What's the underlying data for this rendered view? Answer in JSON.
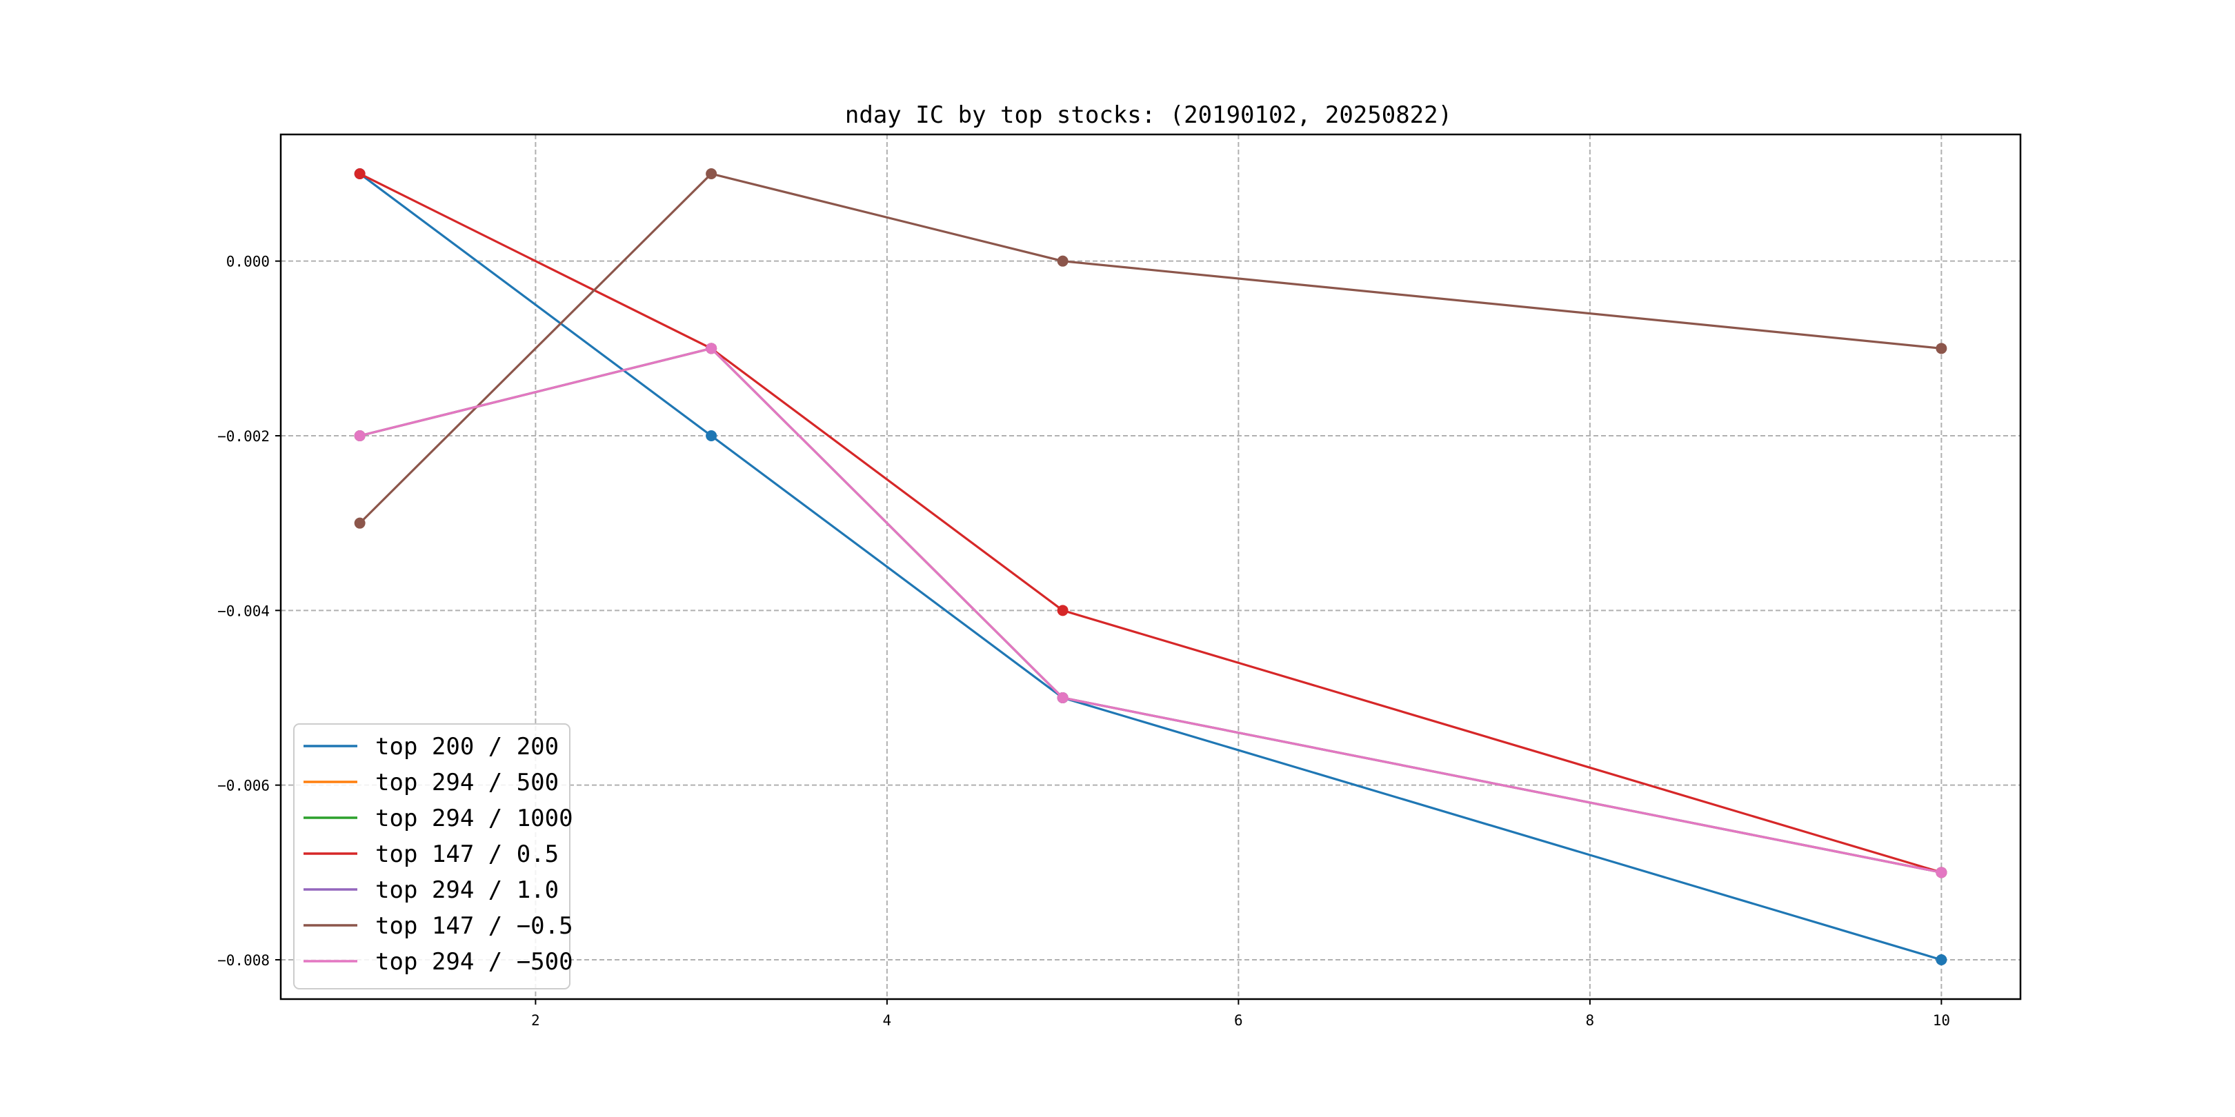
{
  "chart_data": {
    "type": "line",
    "title": "nday IC by top stocks: (20190102, 20250822)",
    "xlabel": "",
    "ylabel": "",
    "x": [
      1,
      3,
      5,
      10
    ],
    "xlim": [
      0.55,
      10.45
    ],
    "ylim": [
      -0.00845,
      0.00145
    ],
    "xticks": [
      2,
      4,
      6,
      8,
      10
    ],
    "xtick_labels": [
      "2",
      "4",
      "6",
      "8",
      "10"
    ],
    "yticks": [
      0.0,
      -0.002,
      -0.004,
      -0.006,
      -0.008
    ],
    "ytick_labels": [
      "0.000",
      "−0.002",
      "−0.004",
      "−0.006",
      "−0.008"
    ],
    "grid": true,
    "legend_position": "lower-left",
    "series": [
      {
        "name": "top 200 / 200",
        "color": "#1f77b4",
        "values": [
          0.001,
          -0.002,
          -0.005,
          -0.008
        ]
      },
      {
        "name": "top 294 / 500",
        "color": "#ff7f0e",
        "values": [
          -0.002,
          -0.001,
          -0.005,
          -0.007
        ]
      },
      {
        "name": "top 294 / 1000",
        "color": "#2ca02c",
        "values": [
          -0.002,
          -0.001,
          -0.005,
          -0.007
        ]
      },
      {
        "name": "top 147 / 0.5",
        "color": "#d62728",
        "values": [
          0.001,
          -0.001,
          -0.004,
          -0.007
        ]
      },
      {
        "name": "top 294 / 1.0",
        "color": "#9467bd",
        "values": [
          -0.002,
          -0.001,
          -0.005,
          -0.007
        ]
      },
      {
        "name": "top 147 / −0.5",
        "color": "#8c564b",
        "values": [
          -0.003,
          0.001,
          0.0,
          -0.001
        ]
      },
      {
        "name": "top 294 / −500",
        "color": "#e377c2",
        "values": [
          -0.002,
          -0.001,
          -0.005,
          -0.007
        ]
      }
    ]
  }
}
